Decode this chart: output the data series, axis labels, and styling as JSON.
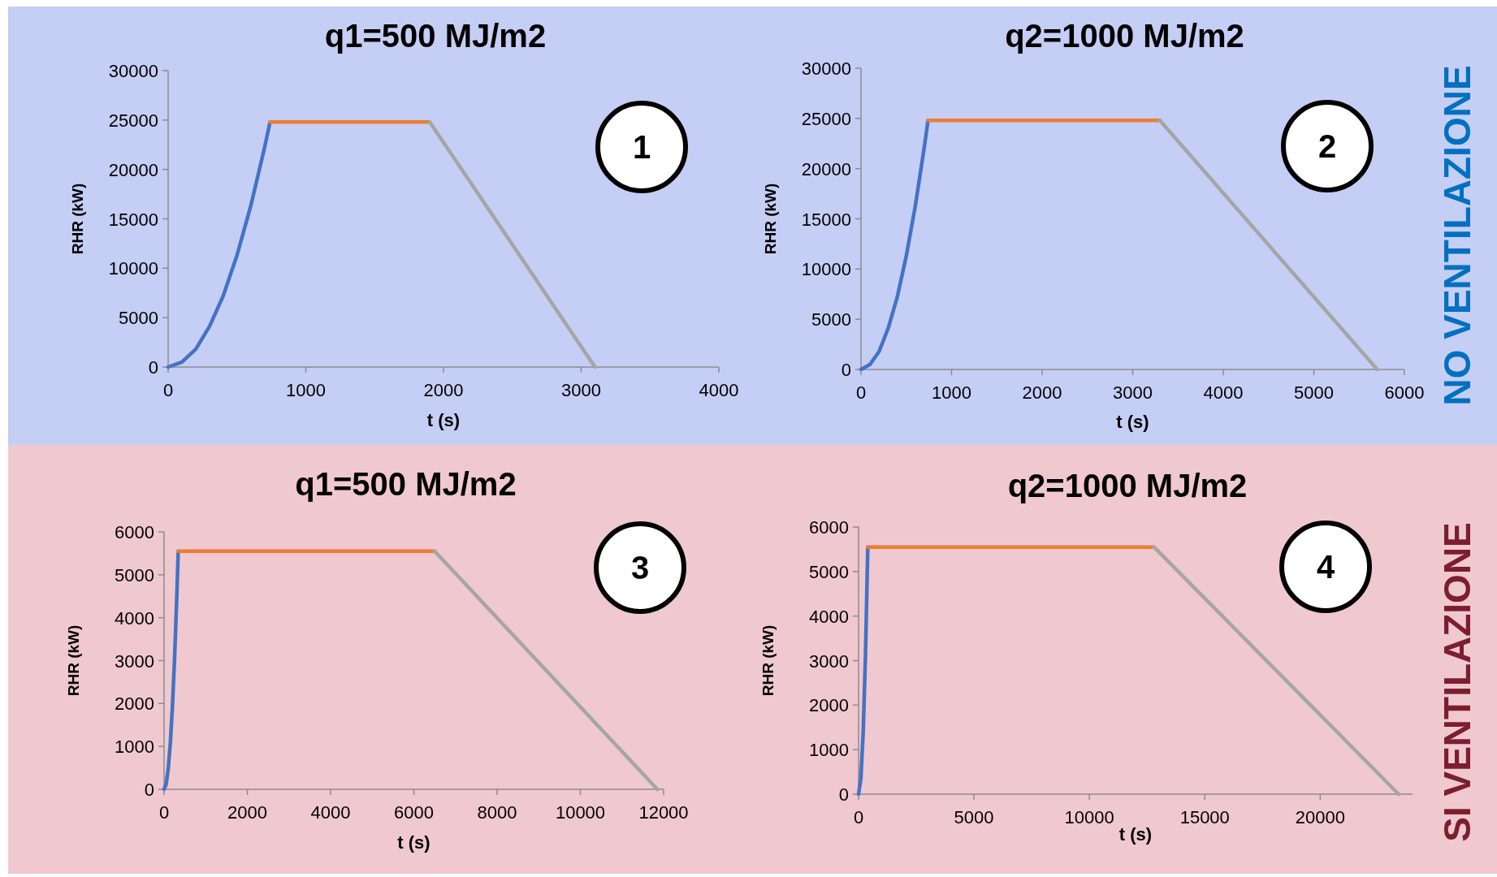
{
  "chart_data": [
    {
      "type": "line",
      "title": "q1=500 MJ/m2",
      "xlabel": "t (s)",
      "ylabel": "RHR (kW)",
      "xlim": [
        0,
        4000
      ],
      "xticks": [
        0,
        1000,
        2000,
        3000,
        4000
      ],
      "ylim": [
        0,
        30000
      ],
      "yticks": [
        0,
        5000,
        10000,
        15000,
        20000,
        25000,
        30000
      ],
      "annotations": [
        "1"
      ],
      "series": [
        {
          "color": "#4472c4",
          "x": [
            0,
            100,
            200,
            300,
            400,
            500,
            600,
            700,
            740
          ],
          "values": [
            0,
            500,
            1800,
            4100,
            7200,
            11300,
            16300,
            22200,
            24800
          ]
        },
        {
          "color": "#ed7d31",
          "x": [
            740,
            1900
          ],
          "values": [
            24800,
            24800
          ]
        },
        {
          "color": "#a5a5a5",
          "x": [
            1900,
            3100
          ],
          "values": [
            24800,
            0
          ]
        }
      ]
    },
    {
      "type": "line",
      "title": "q2=1000 MJ/m2",
      "xlabel": "t (s)",
      "ylabel": "RHR (kW)",
      "xlim": [
        0,
        6000
      ],
      "xticks": [
        0,
        1000,
        2000,
        3000,
        4000,
        5000,
        6000
      ],
      "ylim": [
        0,
        30000
      ],
      "yticks": [
        0,
        5000,
        10000,
        15000,
        20000,
        25000,
        30000
      ],
      "annotations": [
        "2",
        "NO VENTILAZIONE"
      ],
      "series": [
        {
          "color": "#4472c4",
          "x": [
            0,
            100,
            200,
            300,
            400,
            500,
            600,
            700,
            740
          ],
          "values": [
            0,
            500,
            1800,
            4100,
            7200,
            11300,
            16300,
            22200,
            24800
          ]
        },
        {
          "color": "#ed7d31",
          "x": [
            740,
            3300
          ],
          "values": [
            24800,
            24800
          ]
        },
        {
          "color": "#a5a5a5",
          "x": [
            3300,
            5700
          ],
          "values": [
            24800,
            0
          ]
        }
      ]
    },
    {
      "type": "line",
      "title": "q1=500 MJ/m2",
      "xlabel": "t (s)",
      "ylabel": "RHR (kW)",
      "xlim": [
        0,
        12000
      ],
      "xticks": [
        0,
        2000,
        4000,
        6000,
        8000,
        10000,
        12000
      ],
      "ylim": [
        0,
        6000
      ],
      "yticks": [
        0,
        1000,
        2000,
        3000,
        4000,
        5000,
        6000
      ],
      "annotations": [
        "3"
      ],
      "series": [
        {
          "color": "#4472c4",
          "x": [
            0,
            50,
            100,
            150,
            200,
            250,
            300,
            340
          ],
          "values": [
            0,
            120,
            480,
            1080,
            1920,
            3000,
            4320,
            5550
          ]
        },
        {
          "color": "#ed7d31",
          "x": [
            340,
            6500
          ],
          "values": [
            5550,
            5550
          ]
        },
        {
          "color": "#a5a5a5",
          "x": [
            6500,
            11850
          ],
          "values": [
            5550,
            0
          ]
        }
      ]
    },
    {
      "type": "line",
      "title": "q2=1000 MJ/m2",
      "xlabel": "t (s)",
      "ylabel": "RHR (kW)",
      "xlim": [
        0,
        24000
      ],
      "xticks": [
        0,
        5000,
        10000,
        15000,
        20000
      ],
      "ylim": [
        0,
        6000
      ],
      "yticks": [
        0,
        1000,
        2000,
        3000,
        4000,
        5000,
        6000
      ],
      "annotations": [
        "4",
        "SI VENTILAZIONE"
      ],
      "series": [
        {
          "color": "#4472c4",
          "x": [
            0,
            100,
            200,
            300,
            400
          ],
          "values": [
            0,
            350,
            1390,
            3120,
            5550
          ]
        },
        {
          "color": "#ed7d31",
          "x": [
            400,
            12800
          ],
          "values": [
            5550,
            5550
          ]
        },
        {
          "color": "#a5a5a5",
          "x": [
            12800,
            23400
          ],
          "values": [
            5550,
            0
          ]
        }
      ]
    }
  ]
}
